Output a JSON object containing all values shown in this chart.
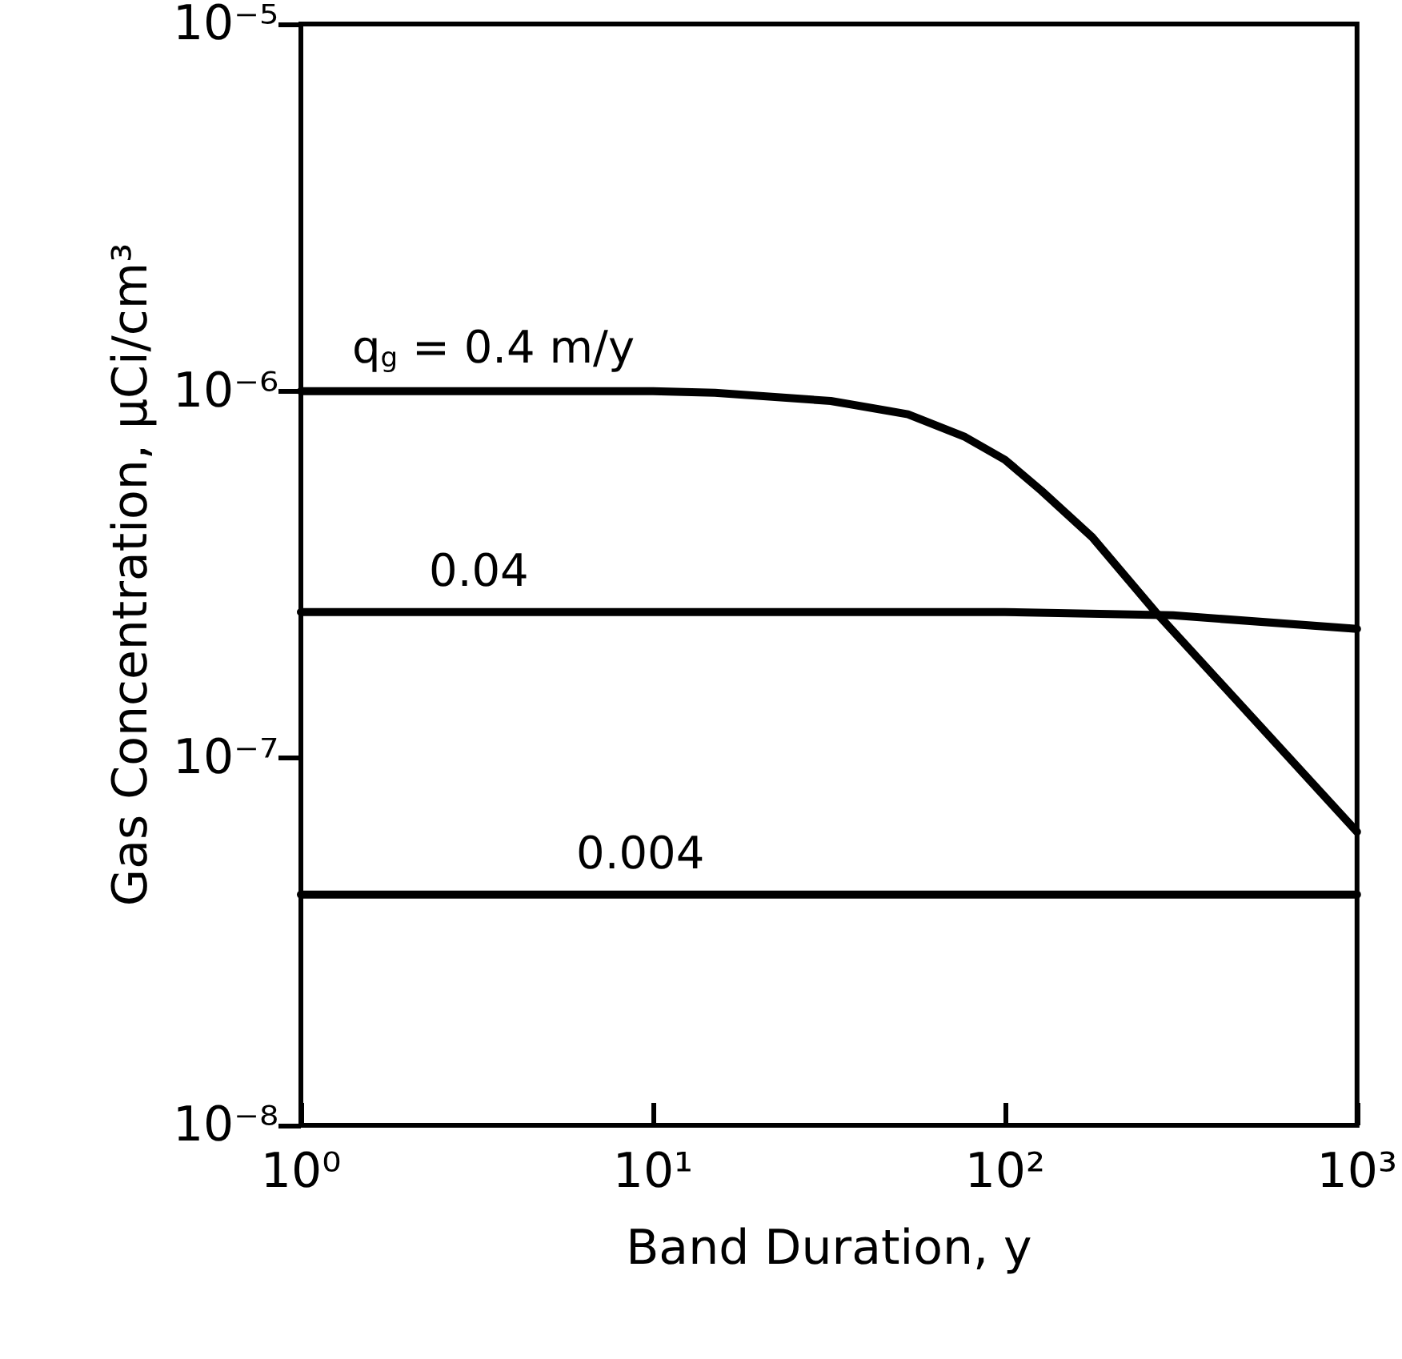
{
  "chart_data": {
    "type": "line",
    "xlabel": "Band Duration, y",
    "ylabel": "Gas Concentration, μCi/cm³",
    "log": "xy",
    "xlim": [
      1,
      1000
    ],
    "ylim": [
      1e-08,
      1e-05
    ],
    "xticks": [
      {
        "value": 1,
        "label": "10⁰"
      },
      {
        "value": 10,
        "label": "10¹"
      },
      {
        "value": 100,
        "label": "10²"
      },
      {
        "value": 1000,
        "label": "10³"
      }
    ],
    "yticks": [
      {
        "value": 1e-08,
        "label": "10⁻⁸"
      },
      {
        "value": 1e-07,
        "label": "10⁻⁷"
      },
      {
        "value": 1e-06,
        "label": "10⁻⁶"
      },
      {
        "value": 1e-05,
        "label": "10⁻⁵"
      }
    ],
    "grid": false,
    "legend": false,
    "marker": "none",
    "line_style": "solid",
    "series": [
      {
        "name": "q$_{g}$ = 0.4 m/y",
        "color": "#000000",
        "x": [
          1,
          10,
          15,
          32,
          53,
          77,
          100,
          127,
          177,
          268,
          1000
        ],
        "values": [
          1e-06,
          1e-06,
          9.9e-07,
          9.4e-07,
          8.65e-07,
          7.5e-07,
          6.5e-07,
          5.35e-07,
          4e-07,
          2.5e-07,
          6.3e-08
        ]
      },
      {
        "name": "0.04",
        "color": "#000000",
        "x": [
          1,
          100,
          300,
          1000
        ],
        "values": [
          2.5e-07,
          2.5e-07,
          2.45e-07,
          2.25e-07
        ]
      },
      {
        "name": "0.004",
        "color": "#000000",
        "x": [
          1,
          1000
        ],
        "values": [
          4.25e-08,
          4.25e-08
        ]
      }
    ]
  }
}
